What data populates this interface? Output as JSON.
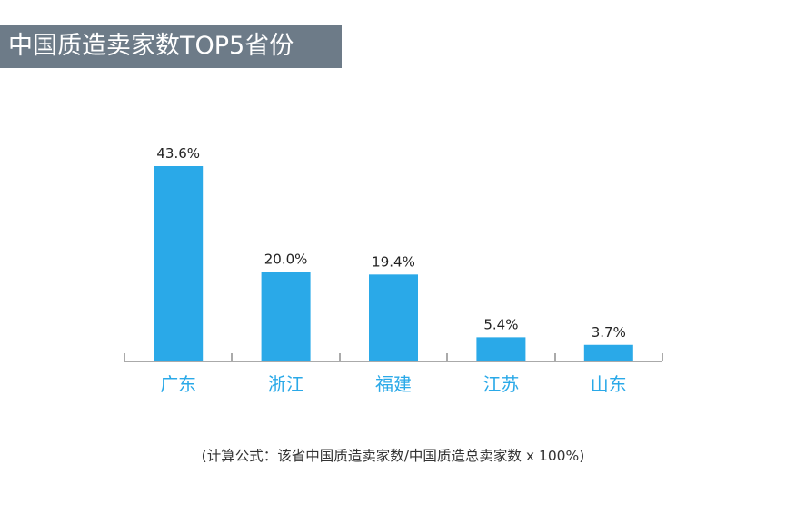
{
  "title": "中国质造卖家数TOP5省份",
  "footnote": "(计算公式：该省中国质造卖家数/中国质造总卖家数 x 100%)",
  "colors": {
    "bar": "#2aa9e8",
    "category_label": "#2aa9e8",
    "title_background": "#6d7b88",
    "axis": "#555555"
  },
  "chart_data": {
    "type": "bar",
    "title": "中国质造卖家数TOP5省份",
    "categories": [
      "广东",
      "浙江",
      "福建",
      "江苏",
      "山东"
    ],
    "values": [
      43.6,
      20.0,
      19.4,
      5.4,
      3.7
    ],
    "data_labels": [
      "43.6%",
      "20.0%",
      "19.4%",
      "5.4%",
      "3.7%"
    ],
    "unit": "%",
    "ylim": [
      0,
      50
    ],
    "xlabel": "",
    "ylabel": "",
    "grid": false,
    "legend": "none"
  }
}
